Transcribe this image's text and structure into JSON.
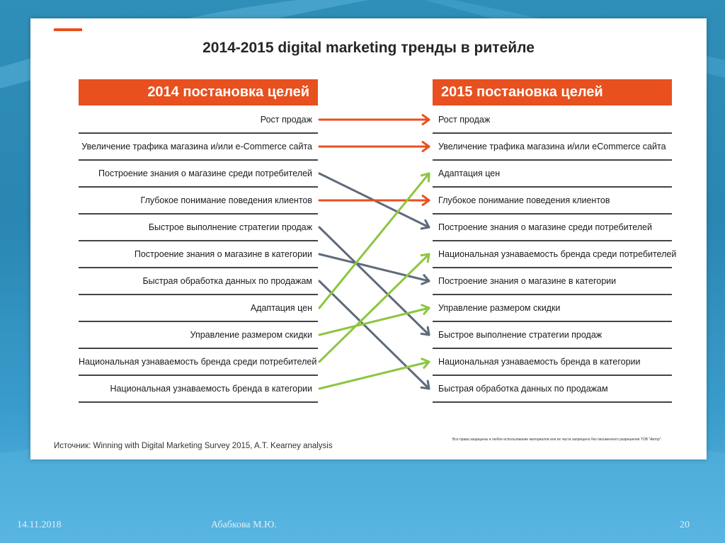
{
  "slide": {
    "title": "2014-2015 digital marketing тренды в ритейле",
    "left_header": "2014 постановка целей",
    "right_header": "2015 постановка целей",
    "left_items": [
      "Рост продаж",
      "Увеличение трафика магазина и/или e-Commerce сайта",
      "Построение знания о магазине среди потребителей",
      "Глубокое понимание поведения клиентов",
      "Быстрое выполнение стратегии продаж",
      "Построение знания о магазине в категории",
      "Быстрая обработка данных по продажам",
      "Адаптация цен",
      "Управление размером скидки",
      "Национальная узнаваемость бренда среди потребителей",
      "Национальная узнаваемость бренда  в категории"
    ],
    "right_items": [
      "Рост продаж",
      "Увеличение трафика магазина и/или eCommerce сайта",
      "Адаптация цен",
      "Глубокое понимание поведения клиентов",
      "Построение знания о магазине среди потребителей",
      "Национальная узнаваемость бренда среди потребителей",
      "Построение знания о магазине в категории",
      "Управление размером скидки",
      "Быстрое выполнение стратегии продаж",
      "Национальная узнаваемость бренда  в категории",
      "Быстрая обработка данных по продажам"
    ],
    "links": [
      {
        "from": 0,
        "to": 0,
        "kind": "same"
      },
      {
        "from": 1,
        "to": 1,
        "kind": "same"
      },
      {
        "from": 2,
        "to": 4,
        "kind": "down"
      },
      {
        "from": 3,
        "to": 3,
        "kind": "same"
      },
      {
        "from": 4,
        "to": 8,
        "kind": "down"
      },
      {
        "from": 5,
        "to": 6,
        "kind": "down"
      },
      {
        "from": 6,
        "to": 10,
        "kind": "down"
      },
      {
        "from": 7,
        "to": 2,
        "kind": "up"
      },
      {
        "from": 8,
        "to": 7,
        "kind": "up"
      },
      {
        "from": 9,
        "to": 5,
        "kind": "up"
      },
      {
        "from": 10,
        "to": 9,
        "kind": "up"
      }
    ],
    "colors": {
      "accent": "#e8501f",
      "same": "#e8501f",
      "down": "#5f6b7a",
      "up": "#8cc63f"
    },
    "source": "Источник: Winning with Digital Marketing Survey 2015, A.T. Kearney analysis",
    "copyright": "Все права защищены и любое использование материалов или их части запрещено без письменного разрешения ТОВ \"Автор\"."
  },
  "footer": {
    "date": "14.11.2018",
    "author": "Абабкова М.Ю.",
    "page": "20"
  }
}
